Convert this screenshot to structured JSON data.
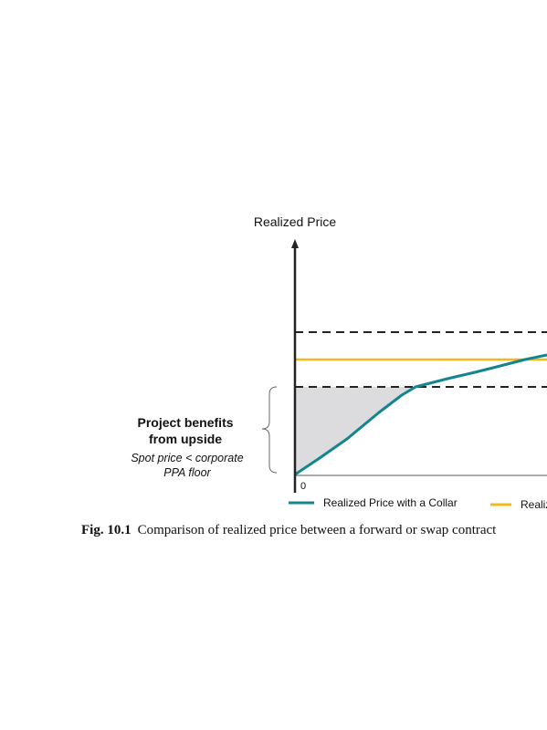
{
  "figure": {
    "y_axis_label": "Realized Price",
    "origin_label": "0",
    "annotation": {
      "title_line1": "Project benefits",
      "title_line2": "from upside",
      "note_line1": "Spot price < corporate",
      "note_line2": "PPA floor"
    },
    "legend": [
      {
        "label": "Realized Price with a Collar",
        "color": "#12858f"
      },
      {
        "label": "Realiz",
        "color": "#f2b81c"
      }
    ],
    "caption": {
      "number": "Fig. 10.1",
      "text": "Comparison of realized price between a forward or swap contract"
    },
    "colors": {
      "collar_line": "#12858f",
      "fixed_line": "#f2b81c",
      "shaded_area": "#dcdcde",
      "axis": "#222222",
      "dashed": "#222222"
    }
  }
}
